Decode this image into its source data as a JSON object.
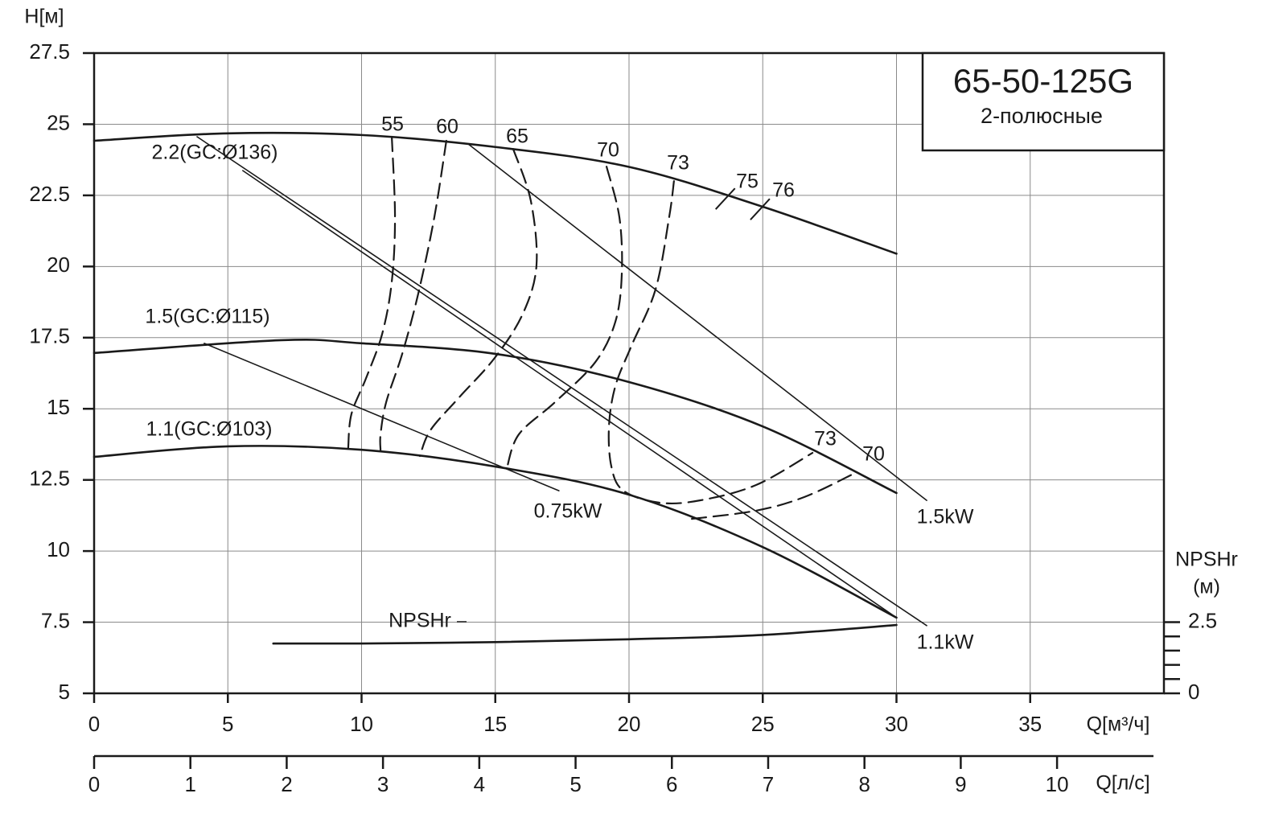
{
  "chart_data": {
    "type": "line",
    "title": "65-50-125G",
    "subtitle": "2-полюсные",
    "y_label": "H[м]",
    "x_label": "Q[м³/ч]",
    "x2_label": "Q[л/с]",
    "y2_label": "NPSHr",
    "y2_unit": "(м)",
    "color": "#1a1a1a",
    "grid": true,
    "xlim": [
      0,
      40
    ],
    "xticks": [
      0,
      5,
      10,
      15,
      20,
      25,
      30,
      35
    ],
    "ylim": [
      5,
      27.5
    ],
    "yticks": [
      5,
      7.5,
      10,
      12.5,
      15,
      17.5,
      20,
      22.5,
      25,
      27.5
    ],
    "x2lim": [
      0,
      11.11
    ],
    "x2ticks": [
      0,
      1,
      2,
      3,
      4,
      5,
      6,
      7,
      8,
      9,
      10
    ],
    "y2lim": [
      0,
      22.5
    ],
    "y2ticks": [
      0,
      2.5
    ],
    "y2minor_ticks": [
      0.5,
      1,
      1.5,
      2
    ],
    "series": [
      {
        "name": "2.2(GC:Ø136)",
        "x": [
          0,
          5,
          10,
          15,
          20,
          25,
          30
        ],
        "values": [
          24.42,
          24.68,
          24.62,
          24.2,
          23.5,
          22.1,
          20.45
        ]
      },
      {
        "name": "1.5(GC:Ø115)",
        "x": [
          0,
          7,
          10,
          15,
          20,
          25,
          30
        ],
        "values": [
          16.96,
          17.41,
          17.3,
          16.93,
          15.94,
          14.38,
          12.04
        ]
      },
      {
        "name": "1.1(GC:Ø103)",
        "x": [
          0,
          5,
          10,
          15,
          20,
          25,
          30
        ],
        "values": [
          13.31,
          13.68,
          13.56,
          12.97,
          11.98,
          10.14,
          7.66
        ]
      },
      {
        "name": "NPSHr",
        "axis": "y2",
        "x": [
          6.7,
          10,
          15,
          20,
          25,
          30
        ],
        "values": [
          1.75,
          1.75,
          1.8,
          1.9,
          2.05,
          2.4
        ]
      }
    ],
    "power_lines": [
      {
        "name": "0.75kW",
        "x": [
          4.12,
          17.38
        ],
        "values": [
          17.3,
          12.12
        ]
      },
      {
        "name": "1.1kW",
        "x": [
          3.85,
          31.13
        ],
        "values": [
          24.56,
          7.38
        ]
      },
      {
        "name": "1.5kW",
        "x": [
          14.02,
          31.13
        ],
        "values": [
          24.28,
          11.78
        ]
      },
      {
        "x": [
          5.56,
          30.0
        ],
        "values": [
          23.37,
          7.66
        ]
      }
    ],
    "efficiency_curves": [
      {
        "name": "55",
        "x": [
          11.13,
          11.25,
          11.13,
          10.77,
          10.17,
          9.62,
          9.5
        ],
        "values": [
          24.56,
          21.73,
          19.47,
          17.63,
          16.08,
          14.81,
          13.62
        ]
      },
      {
        "name": "60",
        "x": [
          13.17,
          12.72,
          12.12,
          11.52,
          10.92,
          10.71,
          10.71
        ],
        "values": [
          24.42,
          21.73,
          19.05,
          16.93,
          15.23,
          14.1,
          13.54
        ]
      },
      {
        "name": "65",
        "x": [
          15.67,
          16.33,
          16.54,
          16.03,
          14.98,
          13.62,
          12.57,
          12.18
        ],
        "values": [
          24.13,
          22.3,
          20.04,
          18.34,
          16.79,
          15.37,
          14.24,
          13.34
        ]
      },
      {
        "name": "70",
        "x": [
          19.16,
          19.64,
          19.73,
          19.49,
          18.74,
          17.23,
          15.88,
          15.43
        ],
        "values": [
          23.51,
          21.73,
          19.75,
          18.06,
          16.64,
          15.23,
          14.1,
          12.91
        ]
      },
      {
        "name": "73",
        "x": [
          21.68,
          21.5,
          20.99,
          20.09,
          19.49,
          19.25,
          19.34,
          19.79,
          21.14,
          22.65,
          24.75,
          26.86
        ],
        "values": [
          23.0,
          21.73,
          19.19,
          17.21,
          15.8,
          14.38,
          12.97,
          12.12,
          11.7,
          11.78,
          12.32,
          13.45
        ]
      },
      {
        "name": "70",
        "x": [
          22.35,
          24.75,
          26.56,
          28.45
        ],
        "values": [
          11.13,
          11.42,
          11.9,
          12.74
        ]
      }
    ],
    "efficiency_marks": [
      {
        "name": "75",
        "x": 23.6,
        "value": 22.38
      },
      {
        "name": "76",
        "x": 24.9,
        "value": 22.01
      }
    ]
  }
}
